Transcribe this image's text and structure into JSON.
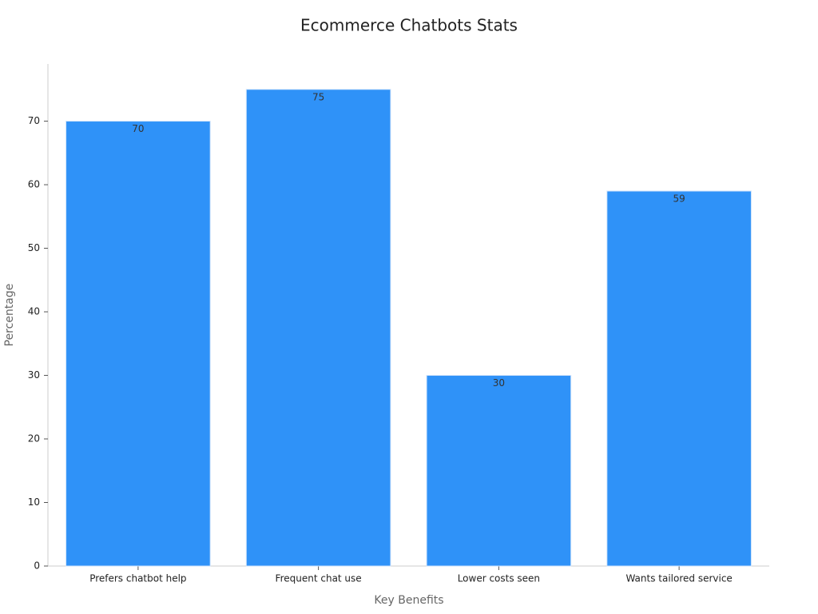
{
  "chart_data": {
    "type": "bar",
    "title": "Ecommerce Chatbots Stats",
    "x_label": "Key Benefits",
    "y_label": "Percentage",
    "categories": [
      "Prefers chatbot help",
      "Frequent chat use",
      "Lower costs seen",
      "Wants tailored service"
    ],
    "values": [
      70,
      75,
      30,
      59
    ],
    "color": "#2f92f8",
    "ylim": [
      0,
      79
    ],
    "yticks": [
      0,
      10,
      20,
      30,
      40,
      50,
      60,
      70
    ],
    "grid": false
  }
}
